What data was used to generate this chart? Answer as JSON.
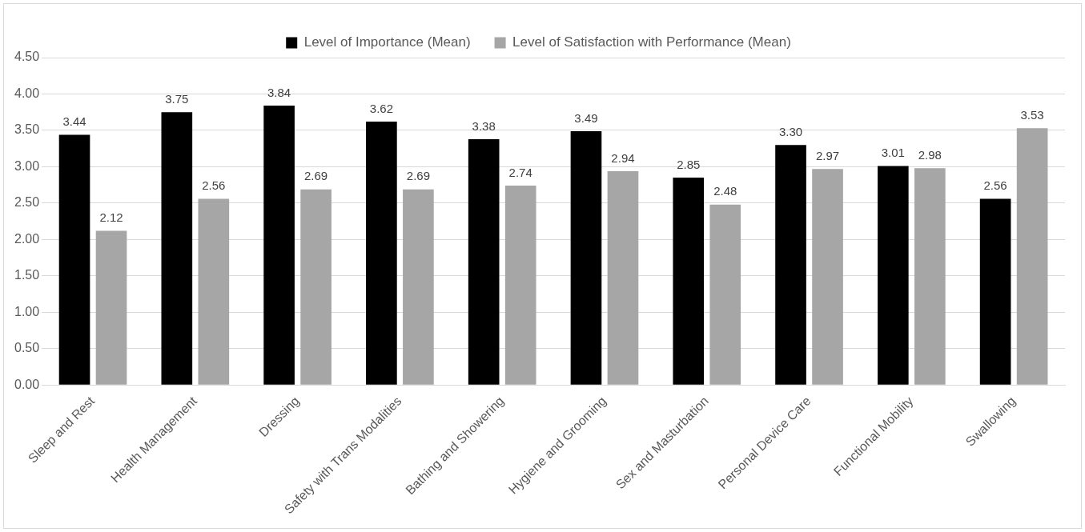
{
  "chart_data": {
    "type": "bar",
    "categories": [
      "Sleep and Rest",
      "Health Management",
      "Dressing",
      "Safety with Trans Modalities",
      "Bathing and Showering",
      "Hygiene and Grooming",
      "Sex and Masturbation",
      "Personal Device Care",
      "Functional Mobility",
      "Swallowing"
    ],
    "series": [
      {
        "name": "Level of Importance (Mean)",
        "color": "#000000",
        "values": [
          3.44,
          3.75,
          3.84,
          3.62,
          3.38,
          3.49,
          2.85,
          3.3,
          3.01,
          2.56
        ],
        "value_labels": [
          "3.44",
          "3.75",
          "3.84",
          "3.62",
          "3.38",
          "3.49",
          "2.85",
          "3.30",
          "3.01",
          "2.56"
        ]
      },
      {
        "name": "Level of Satisfaction with Performance (Mean)",
        "color": "#a6a6a6",
        "values": [
          2.12,
          2.56,
          2.69,
          2.69,
          2.74,
          2.94,
          2.48,
          2.97,
          2.98,
          3.53
        ],
        "value_labels": [
          "2.12",
          "2.56",
          "2.69",
          "2.69",
          "2.74",
          "2.94",
          "2.48",
          "2.97",
          "2.98",
          "3.53"
        ]
      }
    ],
    "ylim": [
      0,
      4.5
    ],
    "yticks": [
      {
        "value": 0,
        "label": "0.00"
      },
      {
        "value": 0.5,
        "label": "0.50"
      },
      {
        "value": 1,
        "label": "1.00"
      },
      {
        "value": 1.5,
        "label": "1.50"
      },
      {
        "value": 2,
        "label": "2.00"
      },
      {
        "value": 2.5,
        "label": "2.50"
      },
      {
        "value": 3,
        "label": "3.00"
      },
      {
        "value": 3.5,
        "label": "3.50"
      },
      {
        "value": 4,
        "label": "4.00"
      },
      {
        "value": 4.5,
        "label": "4.50"
      }
    ],
    "grid": "y",
    "legend": "top"
  }
}
